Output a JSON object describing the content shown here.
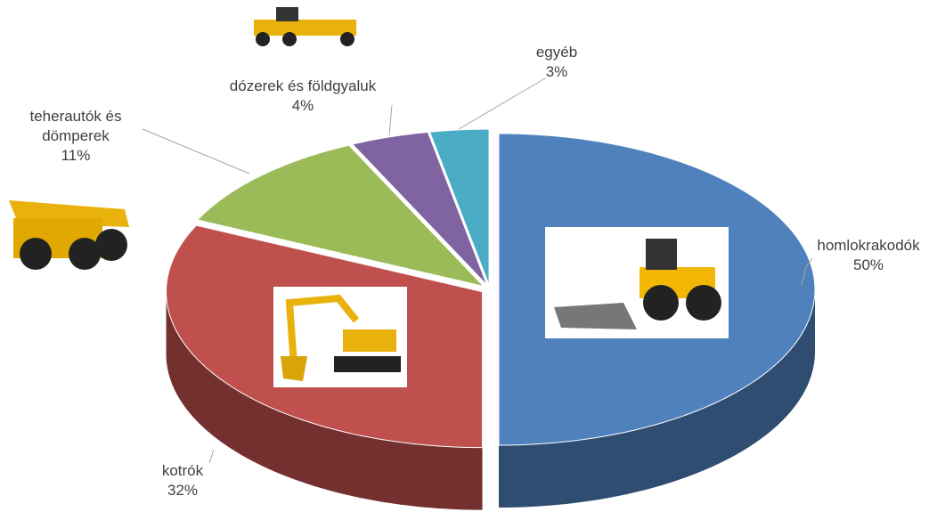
{
  "chart_data": {
    "type": "pie3d",
    "categories": [
      "homlokrakodók",
      "kotrók",
      "teherautók és dömperek",
      "dózerek és földgyaluk",
      "egyéb"
    ],
    "values": [
      50,
      32,
      11,
      4,
      3
    ],
    "value_labels": [
      "50%",
      "32%",
      "11%",
      "4%",
      "3%"
    ],
    "colors": [
      "#4f81bd",
      "#c0504d",
      "#9bbb59",
      "#8064a2",
      "#4bacc6"
    ]
  }
}
